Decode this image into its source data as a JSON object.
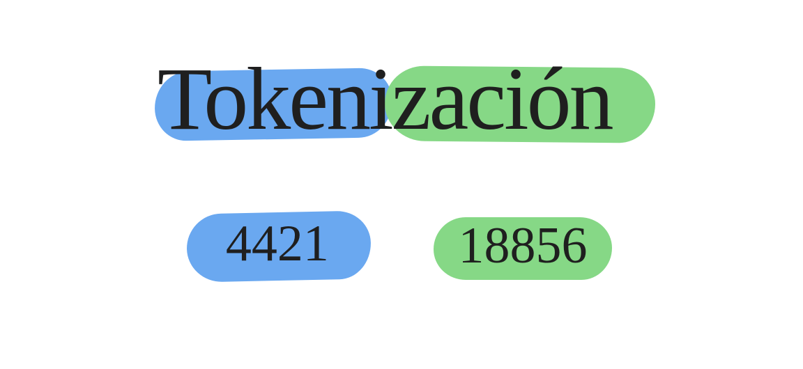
{
  "word": {
    "text_part_1": "Token",
    "text_part_2": "ización",
    "tokens": [
      {
        "text": "Token",
        "id": "4421",
        "color": "#6aa8f0"
      },
      {
        "text": "ización",
        "id": "18856",
        "color": "#86d886"
      }
    ]
  },
  "colors": {
    "token_1": "#6aa8f0",
    "token_2": "#86d886",
    "text": "#1f1f1f",
    "background": "#ffffff"
  }
}
